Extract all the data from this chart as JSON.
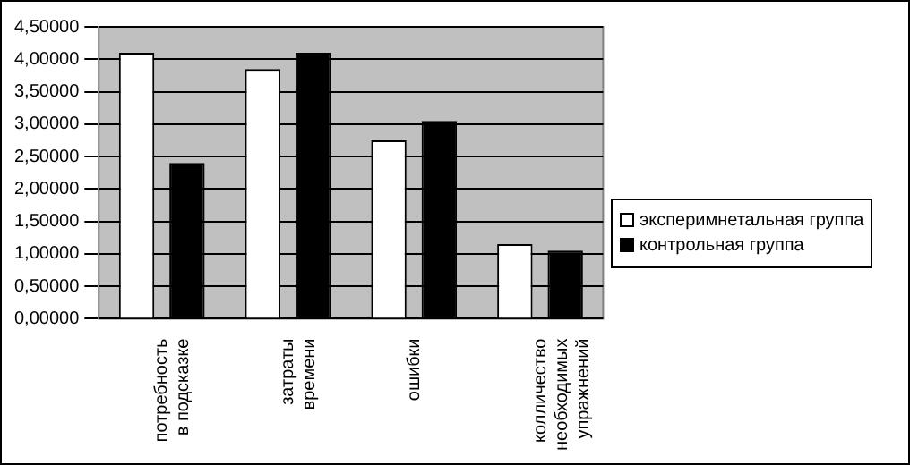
{
  "chart_data": {
    "type": "bar",
    "categories": [
      "потребность в подсказке",
      "затраты времени",
      "ошибки",
      "колличество необходимых упражнений"
    ],
    "series": [
      {
        "name": "эксперимнетальная группа",
        "color": "#ffffff",
        "values": [
          4.1,
          3.85,
          2.75,
          1.15
        ]
      },
      {
        "name": "контрольная группа",
        "color": "#000000",
        "values": [
          2.4,
          4.1,
          3.05,
          1.05
        ]
      }
    ],
    "ylim": [
      0,
      4.5
    ],
    "yticks": [
      {
        "value": 0,
        "label": "0,00000"
      },
      {
        "value": 0.5,
        "label": "0,50000"
      },
      {
        "value": 1,
        "label": "1,00000"
      },
      {
        "value": 1.5,
        "label": "1,50000"
      },
      {
        "value": 2,
        "label": "2,00000"
      },
      {
        "value": 2.5,
        "label": "2,50000"
      },
      {
        "value": 3,
        "label": "3,00000"
      },
      {
        "value": 3.5,
        "label": "3,50000"
      },
      {
        "value": 4,
        "label": "4,00000"
      },
      {
        "value": 4.5,
        "label": "4,50000"
      }
    ],
    "grid": "y",
    "legend": "right"
  }
}
